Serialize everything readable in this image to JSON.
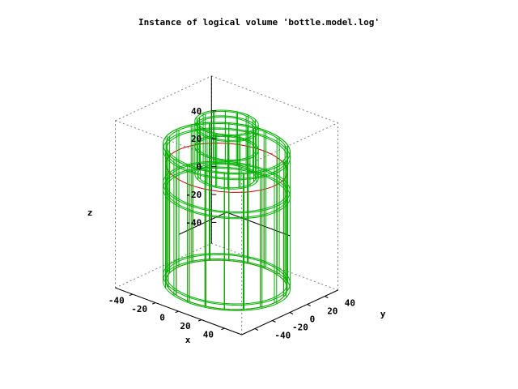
{
  "chart_data": {
    "type": "wireframe-3d",
    "title": "Instance of logical volume 'bottle.model.log'",
    "xlabel": "x",
    "ylabel": "y",
    "zlabel": "z",
    "xlim": [
      -55,
      55
    ],
    "ylim": [
      -55,
      55
    ],
    "zlim": [
      -55,
      65
    ],
    "x_ticks": [
      "-40",
      "-20",
      "0",
      "20",
      "40"
    ],
    "y_ticks": [
      "-40",
      "-20",
      "0",
      "20",
      "40"
    ],
    "z_ticks": [
      "-40",
      "-20",
      "0",
      "20",
      "40"
    ],
    "grid": false,
    "legend": "none",
    "colors": {
      "bounding_box": "#808080",
      "origin_axes": "#000000",
      "body": "#cc0000",
      "shell": "#00b000"
    },
    "solids": [
      {
        "name": "body",
        "shape": "cylinder",
        "color": "red",
        "radius": 42,
        "z_min": -52,
        "z_max": 32,
        "rings_z": [
          -52,
          32
        ],
        "generators": 20
      },
      {
        "name": "outer-shell",
        "shape": "cylinder-shell",
        "color": "green",
        "radii": [
          42,
          44
        ],
        "z_min": -52,
        "z_max": 46,
        "rings_z": [
          -52,
          -48,
          14,
          18,
          42,
          46
        ],
        "generators": 20
      },
      {
        "name": "shoulder",
        "shape": "annulus",
        "color": "green",
        "inner_radius": 22,
        "outer_radius": 44,
        "z": 46
      },
      {
        "name": "neck",
        "shape": "cylinder-shell",
        "color": "green",
        "radii": [
          20,
          22
        ],
        "z_min": 26,
        "z_max": 64,
        "rings_z": [
          26,
          46,
          60,
          64
        ],
        "generators": 16
      }
    ]
  }
}
